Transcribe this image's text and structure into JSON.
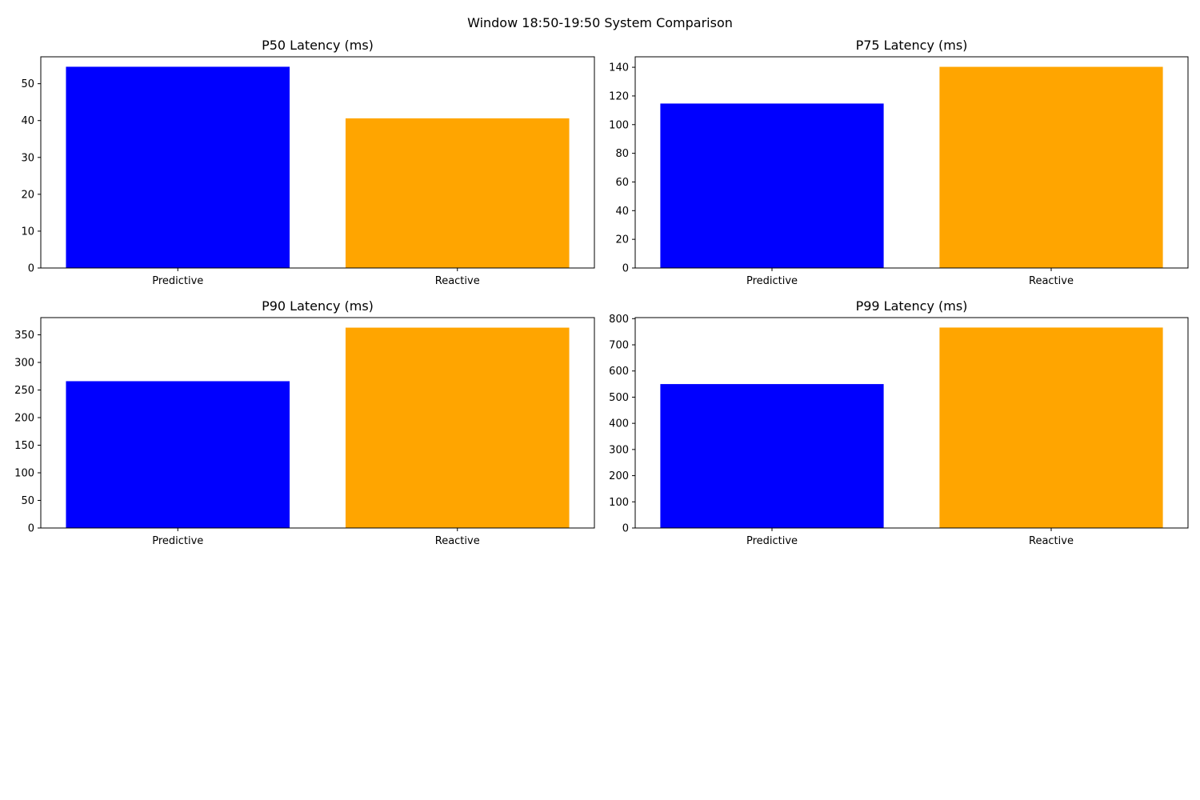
{
  "figure": {
    "title": "Window 18:50-19:50 System Comparison"
  },
  "chart_data": [
    {
      "type": "bar",
      "title": "P50 Latency (ms)",
      "categories": [
        "Predictive",
        "Reactive"
      ],
      "values": [
        54.6,
        40.6
      ],
      "colors": [
        "#0000ff",
        "#ffa500"
      ],
      "ylim": [
        0,
        57.3
      ],
      "yticks": [
        0,
        10,
        20,
        30,
        40,
        50
      ],
      "grid": false
    },
    {
      "type": "bar",
      "title": "P75 Latency (ms)",
      "categories": [
        "Predictive",
        "Reactive"
      ],
      "values": [
        114.7,
        140.3
      ],
      "colors": [
        "#0000ff",
        "#ffa500"
      ],
      "ylim": [
        0,
        147.3
      ],
      "yticks": [
        0,
        20,
        40,
        60,
        80,
        100,
        120,
        140
      ],
      "grid": false
    },
    {
      "type": "bar",
      "title": "P90 Latency (ms)",
      "categories": [
        "Predictive",
        "Reactive"
      ],
      "values": [
        266.0,
        363.0
      ],
      "colors": [
        "#0000ff",
        "#ffa500"
      ],
      "ylim": [
        0,
        381.2
      ],
      "yticks": [
        0,
        50,
        100,
        150,
        200,
        250,
        300,
        350
      ],
      "grid": false
    },
    {
      "type": "bar",
      "title": "P99 Latency (ms)",
      "categories": [
        "Predictive",
        "Reactive"
      ],
      "values": [
        550,
        766
      ],
      "colors": [
        "#0000ff",
        "#ffa500"
      ],
      "ylim": [
        0,
        804
      ],
      "yticks": [
        0,
        100,
        200,
        300,
        400,
        500,
        600,
        700,
        800
      ],
      "grid": false
    }
  ]
}
